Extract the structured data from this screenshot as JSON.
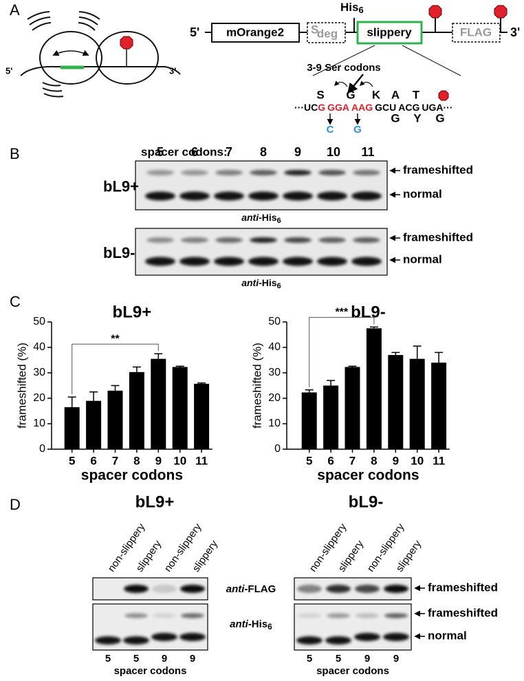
{
  "panel_labels": [
    "A",
    "B",
    "C",
    "D"
  ],
  "panel_a": {
    "ribosome": {
      "five_prime": "5'",
      "three_prime": "3'"
    },
    "construct": {
      "five_prime": "5'",
      "reporter": "mOrange2",
      "degron_s": "S",
      "degron": "deg",
      "slippery": "slippery",
      "flag": "FLAG",
      "three_prime": "3'",
      "his": "His",
      "his_sub": "6"
    },
    "ser_codons": "3-9 Ser codons",
    "amino_acids": [
      "S",
      "G",
      "K",
      "A",
      "T"
    ],
    "sequence": [
      {
        "text": "···UC",
        "color": "#000000"
      },
      {
        "text": "G",
        "color": "#e0202a"
      },
      {
        "text": "GGA",
        "color": "#e0202a"
      },
      {
        "text": "AAG",
        "color": "#e0202a"
      },
      {
        "text": "GCU",
        "color": "#000000"
      },
      {
        "text": "ACG",
        "color": "#000000"
      },
      {
        "text": "UGA···",
        "color": "#000000"
      }
    ],
    "mutations": [
      "C",
      "G"
    ],
    "alternatives": [
      "G",
      "Y",
      "G"
    ]
  },
  "panel_b": {
    "spacer_label": "spacer codons:",
    "spacers": [
      "5",
      "6",
      "7",
      "8",
      "9",
      "10",
      "11"
    ],
    "blots": [
      {
        "name": "bL9+",
        "bands": [
          "frameshifted",
          "normal"
        ],
        "antibody": {
          "italic": "anti",
          "text": "-His",
          "sub": "6"
        }
      },
      {
        "name": "bL9-",
        "bands": [
          "frameshifted",
          "normal"
        ],
        "antibody": {
          "italic": "anti",
          "text": "-His",
          "sub": "6"
        }
      }
    ]
  },
  "chart_data": [
    {
      "type": "bar",
      "title": "bL9+",
      "ylabel": "frameshifted (%)",
      "xlabel": "spacer codons",
      "categories": [
        "5",
        "6",
        "7",
        "8",
        "9",
        "10",
        "11"
      ],
      "values": [
        16.5,
        19,
        23,
        30.3,
        35.5,
        32.3,
        25.7
      ],
      "errors": [
        4,
        3.5,
        2,
        2,
        2,
        0.3,
        0.3
      ],
      "color": "#000000",
      "ylim": [
        0,
        50
      ],
      "yticks": [
        0,
        10,
        20,
        30,
        40,
        50
      ],
      "significance": {
        "text": "**",
        "between": [
          "5",
          "9"
        ]
      }
    },
    {
      "type": "bar",
      "title": "bL9-",
      "ylabel": "frameshifted (%)",
      "xlabel": "spacer codons",
      "categories": [
        "5",
        "6",
        "7",
        "8",
        "9",
        "10",
        "11"
      ],
      "values": [
        22.3,
        25,
        32.3,
        47.5,
        37,
        35.5,
        34
      ],
      "errors": [
        1,
        2,
        0.3,
        0.5,
        1,
        5,
        4
      ],
      "color": "#000000",
      "ylim": [
        0,
        50
      ],
      "yticks": [
        0,
        10,
        20,
        30,
        40,
        50
      ],
      "significance": {
        "text": "***",
        "between": [
          "5",
          "8"
        ]
      }
    }
  ],
  "panel_d": {
    "groups": [
      {
        "title": "bL9+",
        "lanes": [
          "non-slippery",
          "slippery",
          "non-slippery",
          "slippery"
        ],
        "spacers": [
          "5",
          "5",
          "9",
          "9"
        ],
        "xlabel": "spacer codons",
        "antibodies": [
          {
            "italic": "anti",
            "text": "-FLAG"
          },
          {
            "italic": "anti",
            "text": "-His",
            "sub": "6"
          }
        ]
      },
      {
        "title": "bL9-",
        "lanes": [
          "non-slippery",
          "slippery",
          "non-slippery",
          "slippery"
        ],
        "spacers": [
          "5",
          "5",
          "9",
          "9"
        ],
        "xlabel": "spacer codons",
        "bands": [
          "frameshifted",
          "frameshifted",
          "normal"
        ]
      }
    ]
  }
}
